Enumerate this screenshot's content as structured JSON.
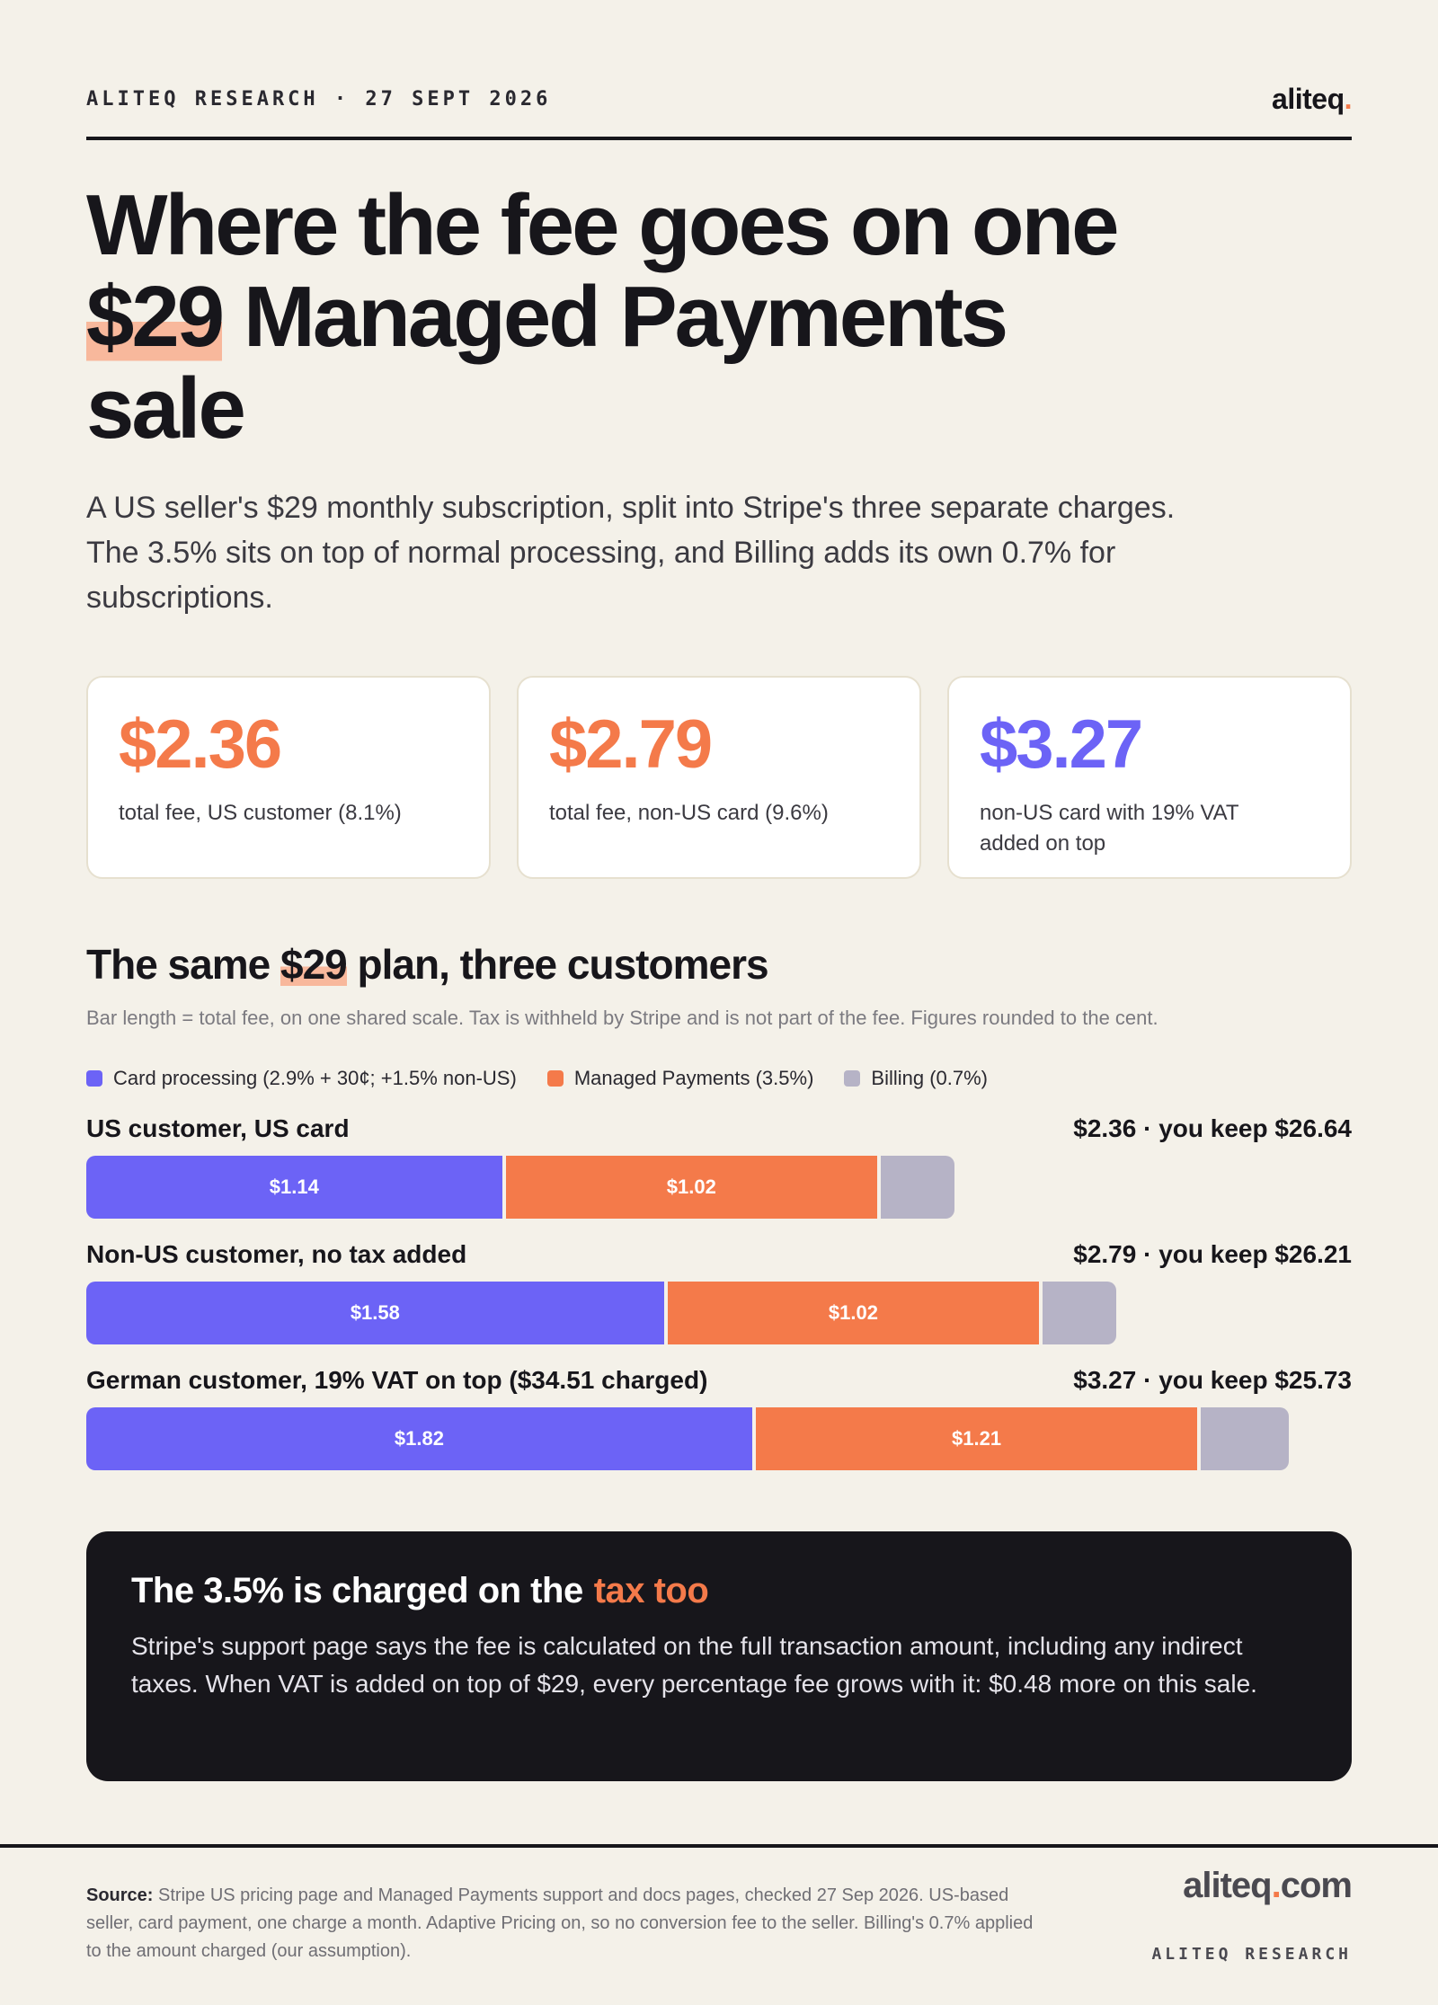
{
  "header": {
    "kicker": "ALITEQ RESEARCH · 27 SEPT 2026",
    "logo": {
      "word": "aliteq",
      "dot": "."
    }
  },
  "title": {
    "line1": "Where the fee goes on one",
    "highlight": "$29",
    "line2_rest": " Managed Payments",
    "line3": "sale"
  },
  "lead": "A US seller's $29 monthly subscription, split into Stripe's three separate charges. The 3.5% sits on top of normal processing, and Billing adds its own 0.7% for subscriptions.",
  "stat_cards": [
    {
      "value": "$2.36",
      "label": "total fee, US customer (8.1%)",
      "color": "#f47a4a"
    },
    {
      "value": "$2.79",
      "label": "total fee, non-US card (9.6%)",
      "color": "#f47a4a"
    },
    {
      "value": "$3.27",
      "label": "non-US card with 19% VAT added on top",
      "color": "#6c63f6"
    }
  ],
  "section": {
    "title_pre": "The same ",
    "title_highlight": "$29",
    "title_post": " plan, three customers",
    "note": "Bar length = total fee, on one shared scale. Tax is withheld by Stripe and is not part of the fee. Figures rounded to the cent."
  },
  "chart_data": {
    "type": "bar",
    "orientation": "horizontal",
    "stacked": true,
    "categories": [
      "US customer, US card",
      "Non-US customer, no tax added",
      "German customer, 19% VAT on top ($34.51 charged)"
    ],
    "totals_text": [
      "$2.36 · you keep $26.64",
      "$2.79 · you keep $26.21",
      "$3.27 · you keep $25.73"
    ],
    "series": [
      {
        "name": "Card processing (2.9% + 30¢; +1.5% non-US)",
        "color": "#6c63f6",
        "values": [
          1.14,
          1.58,
          1.82
        ],
        "labels": [
          "$1.14",
          "$1.58",
          "$1.82"
        ]
      },
      {
        "name": "Managed Payments (3.5%)",
        "color": "#f47a4a",
        "values": [
          1.02,
          1.02,
          1.21
        ],
        "labels": [
          "$1.02",
          "$1.02",
          "$1.21"
        ]
      },
      {
        "name": "Billing (0.7%)",
        "color": "#b6b3c6",
        "values": [
          0.2,
          0.2,
          0.24
        ],
        "labels": [
          "",
          "",
          ""
        ]
      }
    ],
    "xlim": [
      0,
      3.44
    ],
    "grid": false,
    "legend": "top-left"
  },
  "callout": {
    "title": "The 3.5% is charged on the",
    "accent": "tax too",
    "body": "Stripe's support page says the fee is calculated on the full transaction amount, including any indirect taxes. When VAT is added on top of $29, every percentage fee grows with it: $0.48 more on this sale."
  },
  "footer": {
    "source_label": "Source:",
    "source_text": "Stripe US pricing page and Managed Payments support and docs pages, checked 27 Sep 2026. US-based seller, card payment, one charge a month. Adaptive Pricing on, so no conversion fee to the seller. Billing's 0.7% applied to the amount charged (our assumption).",
    "site_word": "aliteq",
    "site_dot": ".",
    "site_tld": "com",
    "brand": "ALITEQ RESEARCH"
  }
}
